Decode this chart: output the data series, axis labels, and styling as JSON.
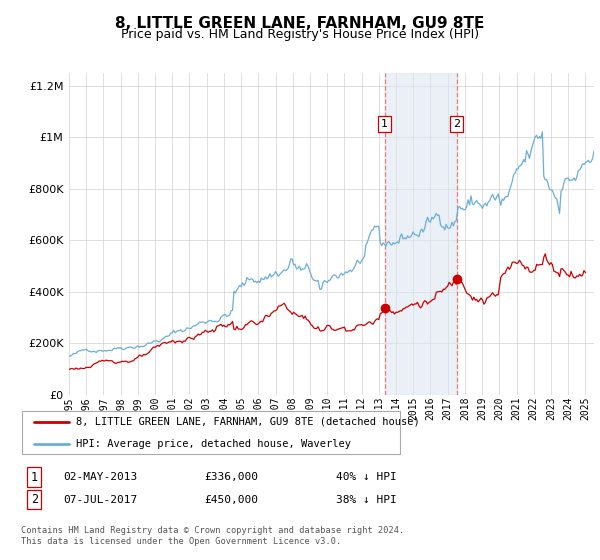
{
  "title": "8, LITTLE GREEN LANE, FARNHAM, GU9 8TE",
  "subtitle": "Price paid vs. HM Land Registry's House Price Index (HPI)",
  "legend_line1": "8, LITTLE GREEN LANE, FARNHAM, GU9 8TE (detached house)",
  "legend_line2": "HPI: Average price, detached house, Waverley",
  "footnote": "Contains HM Land Registry data © Crown copyright and database right 2024.\nThis data is licensed under the Open Government Licence v3.0.",
  "transaction1_label": "1",
  "transaction1_date": "02-MAY-2013",
  "transaction1_price": "£336,000",
  "transaction1_hpi": "40% ↓ HPI",
  "transaction2_label": "2",
  "transaction2_date": "07-JUL-2017",
  "transaction2_price": "£450,000",
  "transaction2_hpi": "38% ↓ HPI",
  "hpi_color": "#6baed6",
  "price_color": "#cc0000",
  "vline_color": "#e87070",
  "shaded_color": "#dce6f1",
  "ylim": [
    0,
    1250000
  ],
  "yticks": [
    0,
    200000,
    400000,
    600000,
    800000,
    1000000,
    1200000
  ],
  "xlim_start": 1995.0,
  "xlim_end": 2025.5,
  "transaction1_x": 2013.33,
  "transaction2_x": 2017.52,
  "transaction1_y": 336000,
  "transaction2_y": 450000,
  "xtick_years": [
    1995,
    1996,
    1997,
    1998,
    1999,
    2000,
    2001,
    2002,
    2003,
    2004,
    2005,
    2006,
    2007,
    2008,
    2009,
    2010,
    2011,
    2012,
    2013,
    2014,
    2015,
    2016,
    2017,
    2018,
    2019,
    2020,
    2021,
    2022,
    2023,
    2024,
    2025
  ]
}
